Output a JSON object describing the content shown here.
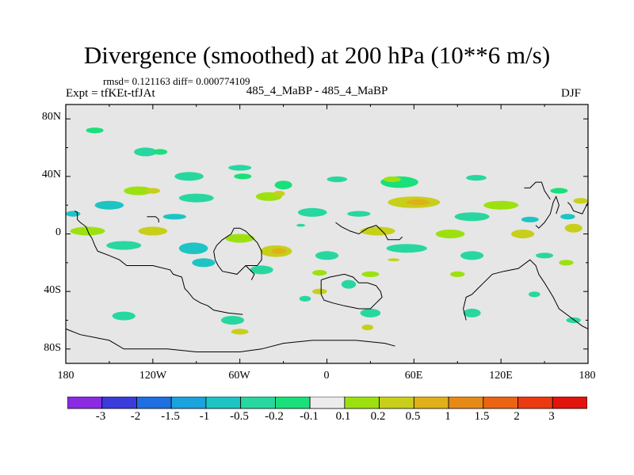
{
  "header": {
    "title": "Divergence (smoothed) at 200 hPa (10**6 m/s)",
    "stats": "rmsd= 0.121163 diff= 0.000774109",
    "experiment": "Expt = tfKEt-tfJAt",
    "case": "485_4_MaBP - 485_4_MaBP",
    "season": "DJF"
  },
  "chart_data": {
    "type": "heatmap",
    "title": "Divergence (smoothed) at 200 hPa (10**6 m/s)",
    "xlabel": "",
    "ylabel": "",
    "x_ticks": [
      "180",
      "120W",
      "60W",
      "0",
      "60E",
      "120E",
      "180"
    ],
    "y_ticks": [
      "80N",
      "40N",
      "0",
      "40S",
      "80S"
    ],
    "xlim": [
      -180,
      180
    ],
    "ylim": [
      -90,
      90
    ],
    "projection": "cylindrical equidistant",
    "grid": false,
    "coastlines": true,
    "missing_color": "#e6e6e6",
    "levels": [
      "-3",
      "-2",
      "-1.5",
      "-1",
      "-0.5",
      "-0.2",
      "-0.1",
      "0.1",
      "0.2",
      "0.5",
      "1",
      "1.5",
      "2",
      "3"
    ],
    "colors": [
      "#8a2be2",
      "#3b3bdc",
      "#1f6fe0",
      "#1aa3dc",
      "#1ec4c4",
      "#28d7a0",
      "#19e07a",
      "#ececec",
      "#9ce10f",
      "#c7cf1a",
      "#e0b019",
      "#e68a17",
      "#ec6412",
      "#ec3a10",
      "#e2140d"
    ],
    "blobs": [
      {
        "lon": -160,
        "lat": 72,
        "a": 6,
        "b": 2,
        "c": 6
      },
      {
        "lon": -125,
        "lat": 57,
        "a": 8,
        "b": 3,
        "c": 5
      },
      {
        "lon": -115,
        "lat": 57,
        "a": 5,
        "b": 2,
        "c": 6
      },
      {
        "lon": -60,
        "lat": 46,
        "a": 8,
        "b": 2,
        "c": 5
      },
      {
        "lon": -95,
        "lat": 40,
        "a": 10,
        "b": 3,
        "c": 5
      },
      {
        "lon": -58,
        "lat": 40,
        "a": 6,
        "b": 2,
        "c": 6
      },
      {
        "lon": -30,
        "lat": 34,
        "a": 6,
        "b": 3,
        "c": 6
      },
      {
        "lon": 7,
        "lat": 38,
        "a": 7,
        "b": 2,
        "c": 5
      },
      {
        "lon": 50,
        "lat": 36,
        "a": 13,
        "b": 4,
        "c": 6
      },
      {
        "lon": 45,
        "lat": 38,
        "a": 6,
        "b": 2,
        "c": 8
      },
      {
        "lon": 103,
        "lat": 39,
        "a": 7,
        "b": 2,
        "c": 5
      },
      {
        "lon": 160,
        "lat": 30,
        "a": 6,
        "b": 2,
        "c": 6
      },
      {
        "lon": -130,
        "lat": 30,
        "a": 10,
        "b": 3,
        "c": 8
      },
      {
        "lon": -120,
        "lat": 30,
        "a": 5,
        "b": 2,
        "c": 9
      },
      {
        "lon": -90,
        "lat": 25,
        "a": 12,
        "b": 3,
        "c": 5
      },
      {
        "lon": -40,
        "lat": 26,
        "a": 9,
        "b": 3,
        "c": 8
      },
      {
        "lon": -33,
        "lat": 28,
        "a": 4,
        "b": 2,
        "c": 9
      },
      {
        "lon": 60,
        "lat": 22,
        "a": 18,
        "b": 4,
        "c": 9
      },
      {
        "lon": 63,
        "lat": 22,
        "a": 8,
        "b": 2,
        "c": 10
      },
      {
        "lon": 120,
        "lat": 20,
        "a": 12,
        "b": 3,
        "c": 8
      },
      {
        "lon": 175,
        "lat": 23,
        "a": 5,
        "b": 2,
        "c": 9
      },
      {
        "lon": -150,
        "lat": 20,
        "a": 10,
        "b": 3,
        "c": 4
      },
      {
        "lon": -175,
        "lat": 14,
        "a": 5,
        "b": 2,
        "c": 4
      },
      {
        "lon": -105,
        "lat": 12,
        "a": 8,
        "b": 2,
        "c": 4
      },
      {
        "lon": -10,
        "lat": 15,
        "a": 10,
        "b": 3,
        "c": 5
      },
      {
        "lon": 22,
        "lat": 14,
        "a": 8,
        "b": 2,
        "c": 5
      },
      {
        "lon": 100,
        "lat": 12,
        "a": 12,
        "b": 3,
        "c": 5
      },
      {
        "lon": 140,
        "lat": 10,
        "a": 6,
        "b": 2,
        "c": 4
      },
      {
        "lon": 166,
        "lat": 12,
        "a": 5,
        "b": 2,
        "c": 4
      },
      {
        "lon": -165,
        "lat": 2,
        "a": 12,
        "b": 3,
        "c": 8
      },
      {
        "lon": -120,
        "lat": 2,
        "a": 10,
        "b": 3,
        "c": 9
      },
      {
        "lon": -60,
        "lat": -3,
        "a": 10,
        "b": 3,
        "c": 8
      },
      {
        "lon": 35,
        "lat": 2,
        "a": 12,
        "b": 3,
        "c": 9
      },
      {
        "lon": 85,
        "lat": 0,
        "a": 10,
        "b": 3,
        "c": 8
      },
      {
        "lon": 135,
        "lat": 0,
        "a": 8,
        "b": 3,
        "c": 9
      },
      {
        "lon": 170,
        "lat": 4,
        "a": 6,
        "b": 3,
        "c": 9
      },
      {
        "lon": -140,
        "lat": -8,
        "a": 12,
        "b": 3,
        "c": 5
      },
      {
        "lon": -92,
        "lat": -10,
        "a": 10,
        "b": 4,
        "c": 4
      },
      {
        "lon": -85,
        "lat": -20,
        "a": 8,
        "b": 3,
        "c": 4
      },
      {
        "lon": -35,
        "lat": -12,
        "a": 11,
        "b": 4,
        "c": 9
      },
      {
        "lon": -33,
        "lat": -12,
        "a": 5,
        "b": 2,
        "c": 10
      },
      {
        "lon": 0,
        "lat": -15,
        "a": 8,
        "b": 3,
        "c": 5
      },
      {
        "lon": 55,
        "lat": -10,
        "a": 14,
        "b": 3,
        "c": 5
      },
      {
        "lon": 100,
        "lat": -15,
        "a": 8,
        "b": 3,
        "c": 5
      },
      {
        "lon": 150,
        "lat": -15,
        "a": 6,
        "b": 2,
        "c": 5
      },
      {
        "lon": -45,
        "lat": -25,
        "a": 8,
        "b": 3,
        "c": 5
      },
      {
        "lon": -5,
        "lat": -27,
        "a": 5,
        "b": 2,
        "c": 8
      },
      {
        "lon": 30,
        "lat": -28,
        "a": 6,
        "b": 2,
        "c": 8
      },
      {
        "lon": 90,
        "lat": -28,
        "a": 5,
        "b": 2,
        "c": 8
      },
      {
        "lon": 165,
        "lat": -20,
        "a": 5,
        "b": 2,
        "c": 8
      },
      {
        "lon": 15,
        "lat": -35,
        "a": 5,
        "b": 3,
        "c": 5
      },
      {
        "lon": -5,
        "lat": -40,
        "a": 5,
        "b": 2,
        "c": 9
      },
      {
        "lon": -15,
        "lat": -45,
        "a": 4,
        "b": 2,
        "c": 5
      },
      {
        "lon": 143,
        "lat": -42,
        "a": 4,
        "b": 2,
        "c": 5
      },
      {
        "lon": -140,
        "lat": -57,
        "a": 8,
        "b": 3,
        "c": 5
      },
      {
        "lon": -65,
        "lat": -60,
        "a": 8,
        "b": 3,
        "c": 5
      },
      {
        "lon": -60,
        "lat": -68,
        "a": 6,
        "b": 2,
        "c": 9
      },
      {
        "lon": 30,
        "lat": -55,
        "a": 7,
        "b": 3,
        "c": 5
      },
      {
        "lon": 28,
        "lat": -65,
        "a": 4,
        "b": 2,
        "c": 9
      },
      {
        "lon": 100,
        "lat": -55,
        "a": 6,
        "b": 3,
        "c": 5
      },
      {
        "lon": 170,
        "lat": -60,
        "a": 5,
        "b": 2,
        "c": 5
      },
      {
        "lon": -18,
        "lat": 6,
        "a": 3,
        "b": 1,
        "c": 5
      },
      {
        "lon": 46,
        "lat": -18,
        "a": 4,
        "b": 1,
        "c": 9
      }
    ],
    "coastlines_data": [
      [
        [
          -174,
          16
        ],
        [
          -172,
          15
        ],
        [
          -172,
          10
        ],
        [
          -170,
          8
        ],
        [
          -166,
          5
        ],
        [
          -164,
          0
        ],
        [
          -162,
          -3
        ],
        [
          -160,
          -8
        ],
        [
          -158,
          -12
        ],
        [
          -150,
          -15
        ],
        [
          -143,
          -18
        ],
        [
          -138,
          -22
        ],
        [
          -120,
          -22
        ],
        [
          -108,
          -25
        ],
        [
          -106,
          -28
        ],
        [
          -100,
          -30
        ],
        [
          -98,
          -38
        ],
        [
          -96,
          -40
        ],
        [
          -92,
          -45
        ],
        [
          -87,
          -48
        ],
        [
          -82,
          -50
        ],
        [
          -78,
          -53
        ],
        [
          -68,
          -55
        ],
        [
          -58,
          -56
        ]
      ],
      [
        [
          -124,
          12
        ],
        [
          -118,
          12
        ],
        [
          -116,
          10
        ],
        [
          -116,
          8
        ]
      ],
      [
        [
          -64,
          4
        ],
        [
          -66,
          0
        ],
        [
          -72,
          -4
        ],
        [
          -76,
          -8
        ],
        [
          -78,
          -12
        ],
        [
          -77,
          -18
        ],
        [
          -75,
          -22
        ],
        [
          -72,
          -26
        ],
        [
          -62,
          -28
        ],
        [
          -56,
          -22
        ],
        [
          -48,
          -22
        ],
        [
          -45,
          -18
        ],
        [
          -45,
          -12
        ],
        [
          -48,
          -6
        ],
        [
          -52,
          -2
        ],
        [
          -56,
          2
        ],
        [
          -60,
          4
        ],
        [
          -64,
          4
        ]
      ],
      [
        [
          -56,
          -22
        ],
        [
          -50,
          -28
        ],
        [
          -52,
          -32
        ]
      ],
      [
        [
          6,
          8
        ],
        [
          10,
          5
        ],
        [
          16,
          2
        ],
        [
          22,
          0
        ],
        [
          28,
          4
        ],
        [
          34,
          6
        ],
        [
          38,
          2
        ],
        [
          40,
          0
        ],
        [
          42,
          -4
        ],
        [
          50,
          -4
        ],
        [
          52,
          -2
        ]
      ],
      [
        [
          -4,
          -32
        ],
        [
          2,
          -30
        ],
        [
          12,
          -28
        ],
        [
          18,
          -30
        ],
        [
          22,
          -34
        ],
        [
          28,
          -34
        ],
        [
          34,
          -36
        ],
        [
          37,
          -40
        ],
        [
          38,
          -44
        ],
        [
          34,
          -48
        ],
        [
          30,
          -52
        ],
        [
          22,
          -52
        ],
        [
          12,
          -50
        ],
        [
          4,
          -48
        ],
        [
          -2,
          -46
        ],
        [
          -4,
          -42
        ],
        [
          -4,
          -36
        ],
        [
          -4,
          -32
        ]
      ],
      [
        [
          96,
          -60
        ],
        [
          94,
          -52
        ],
        [
          96,
          -44
        ],
        [
          100,
          -42
        ],
        [
          104,
          -38
        ],
        [
          108,
          -34
        ],
        [
          114,
          -28
        ],
        [
          122,
          -26
        ],
        [
          132,
          -24
        ],
        [
          140,
          -18
        ],
        [
          144,
          -22
        ],
        [
          146,
          -28
        ],
        [
          150,
          -34
        ],
        [
          156,
          -44
        ],
        [
          160,
          -52
        ],
        [
          168,
          -58
        ],
        [
          176,
          -64
        ],
        [
          180,
          -66
        ]
      ],
      [
        [
          136,
          32
        ],
        [
          140,
          32
        ],
        [
          144,
          36
        ],
        [
          148,
          36
        ],
        [
          150,
          30
        ],
        [
          154,
          24
        ]
      ],
      [
        [
          158,
          14
        ],
        [
          160,
          20
        ],
        [
          158,
          26
        ],
        [
          156,
          22
        ],
        [
          154,
          14
        ],
        [
          150,
          8
        ],
        [
          146,
          4
        ],
        [
          144,
          6
        ]
      ],
      [
        [
          166,
          22
        ],
        [
          168,
          20
        ],
        [
          170,
          16
        ],
        [
          176,
          14
        ],
        [
          178,
          18
        ],
        [
          180,
          22
        ]
      ],
      [
        [
          -180,
          -66
        ],
        [
          -170,
          -70
        ],
        [
          -160,
          -72
        ],
        [
          -150,
          -74
        ],
        [
          -140,
          -80
        ],
        [
          -110,
          -80
        ],
        [
          -90,
          -82
        ],
        [
          -60,
          -82
        ],
        [
          -45,
          -80
        ],
        [
          -30,
          -76
        ],
        [
          -10,
          -74
        ],
        [
          20,
          -74
        ],
        [
          40,
          -76
        ],
        [
          47,
          -78
        ]
      ]
    ]
  },
  "colorbar": {
    "labels": [
      "-3",
      "-2",
      "-1.5",
      "-1",
      "-0.5",
      "-0.2",
      "-0.1",
      "0.1",
      "0.2",
      "0.5",
      "1",
      "1.5",
      "2",
      "3"
    ]
  }
}
